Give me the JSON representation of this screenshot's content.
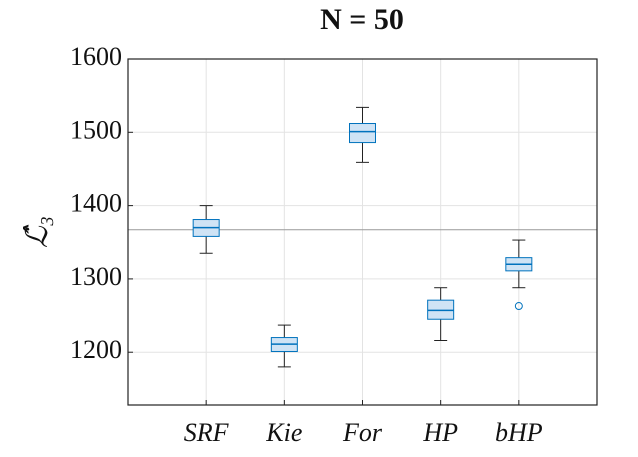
{
  "chart_data": {
    "type": "box",
    "title": "N = 50",
    "ylabel": "ℒ̂₃",
    "categories": [
      "SRF",
      "Kie",
      "For",
      "HP",
      "bHP"
    ],
    "boxes": [
      {
        "whisker_low": 1335,
        "q1": 1358,
        "median": 1370,
        "q3": 1381,
        "whisker_high": 1400,
        "outliers": []
      },
      {
        "whisker_low": 1180,
        "q1": 1201,
        "median": 1211,
        "q3": 1220,
        "whisker_high": 1237,
        "outliers": []
      },
      {
        "whisker_low": 1459,
        "q1": 1486,
        "median": 1501,
        "q3": 1512,
        "whisker_high": 1534,
        "outliers": []
      },
      {
        "whisker_low": 1216,
        "q1": 1245,
        "median": 1257,
        "q3": 1271,
        "whisker_high": 1288,
        "outliers": []
      },
      {
        "whisker_low": 1288,
        "q1": 1311,
        "median": 1320,
        "q3": 1329,
        "whisker_high": 1353,
        "outliers": [
          1263
        ]
      }
    ],
    "reference_line": 1367,
    "color": "#0072bd",
    "fill": "#cfe3f5",
    "ylim": [
      1128,
      1600
    ],
    "yticks": [
      1200,
      1300,
      1400,
      1500,
      1600
    ],
    "grid": true
  }
}
